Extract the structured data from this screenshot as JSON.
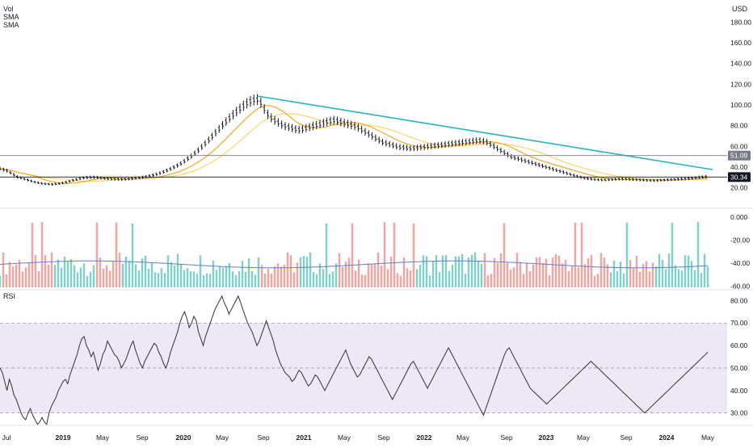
{
  "chart_data": [
    {
      "type": "line",
      "panel": "price",
      "currency_label": "USD",
      "y_ticks": [
        20,
        40,
        60,
        80,
        100,
        120,
        140,
        160,
        180
      ],
      "y_tick_labels": [
        "20.00",
        "40.00",
        "60.00",
        "80.00",
        "100.00",
        "120.00",
        "140.00",
        "160.00",
        "180.00"
      ],
      "ylim": [
        8,
        195
      ],
      "legend": [
        "Vol",
        "SMA",
        "SMA"
      ],
      "series": [
        {
          "role": "price",
          "color": "#131722",
          "values": [
            38.5,
            38,
            37.5,
            37,
            36.5,
            35.5,
            34.5,
            33.5,
            32.5,
            31.5,
            30.5,
            30,
            29.5,
            29,
            28.5,
            28,
            27.5,
            27,
            26.5,
            26,
            25.5,
            25,
            24.8,
            24.5,
            24.2,
            24,
            23.8,
            23.6,
            23.5,
            23.4,
            23.3,
            23.4,
            23.6,
            23.8,
            24,
            24.3,
            24.6,
            25,
            25.4,
            25.8,
            26.2,
            26.7,
            27.2,
            27.6,
            28,
            28.4,
            28.8,
            29.2,
            29.5,
            29.7,
            29.9,
            30,
            30.1,
            30.2,
            30.1,
            30,
            29.9,
            29.7,
            29.5,
            29.3,
            29.1,
            29,
            28.8,
            28.7,
            28.6,
            28.5,
            28.4,
            28.3,
            28.2,
            28.1,
            28.1,
            28.2,
            28.3,
            28.4,
            28.5,
            28.7,
            28.9,
            29.1,
            29.3,
            29.5,
            29.7,
            29.9,
            30.1,
            30.4,
            30.7,
            31,
            31.4,
            31.8,
            32.2,
            32.6,
            33.1,
            33.6,
            34.1,
            34.7,
            35.3,
            36,
            36.7,
            37.4,
            38.2,
            39,
            39.8,
            40.6,
            41.5,
            42.4,
            43.4,
            44.5,
            45.6,
            46.8,
            48,
            49.2,
            50.5,
            51.8,
            53.2,
            54.7,
            56.2,
            57.8,
            59.4,
            61,
            62.7,
            64.4,
            66.1,
            67.8,
            69.6,
            71.4,
            73.2,
            75,
            76.8,
            78.6,
            80.4,
            82.2,
            84,
            85.7,
            87.4,
            89,
            90.5,
            92,
            93.5,
            95,
            96.4,
            97.8,
            99.2,
            100.4,
            101.5,
            102.5,
            103.4,
            104.1,
            104.7,
            105,
            105.2,
            105,
            102,
            99,
            96,
            93,
            91,
            89,
            87.5,
            86,
            85,
            84,
            83,
            82,
            81,
            80,
            79.5,
            79,
            78.5,
            78,
            77.5,
            77,
            76.5,
            76,
            76,
            76,
            76.5,
            77,
            77.5,
            78,
            78.5,
            79,
            79.5,
            80,
            80.5,
            81,
            81.5,
            82,
            82.5,
            83,
            83.5,
            84,
            84.5,
            85,
            85.2,
            85,
            84.5,
            84,
            83.5,
            83,
            82.5,
            82,
            81.5,
            81,
            80.5,
            80,
            79.5,
            79,
            78,
            77,
            76,
            75,
            74,
            73,
            72,
            71,
            70,
            69,
            68,
            67,
            66,
            65,
            64,
            63.5,
            63,
            62.5,
            62,
            61.5,
            61,
            60.5,
            60,
            59.5,
            59.2,
            59,
            58.8,
            58.6,
            58.4,
            58.2,
            58,
            58,
            58.2,
            58.4,
            58.6,
            58.8,
            59,
            59.2,
            59.4,
            59.6,
            59.8,
            60,
            60.2,
            60.4,
            60.6,
            60.8,
            61,
            61.2,
            61.4,
            61.6,
            61.8,
            62,
            62.2,
            62.4,
            62.6,
            62.8,
            63,
            63.2,
            63.4,
            63.6,
            63.8,
            64,
            64.2,
            64.4,
            64.6,
            64.8,
            65,
            65.2,
            65.4,
            65.6,
            65.5,
            65.3,
            65,
            64.5,
            64,
            63,
            62,
            61,
            60,
            59,
            58,
            57,
            56,
            55,
            54,
            53,
            52,
            51,
            50,
            49.5,
            49,
            48.5,
            48,
            47.5,
            47,
            46.5,
            46,
            45.5,
            45,
            44.5,
            44,
            43.5,
            43,
            42.5,
            42,
            41.5,
            41,
            40.5,
            40,
            39.5,
            39,
            38.5,
            38,
            37.5,
            37,
            36.5,
            36,
            35.5,
            35,
            34.5,
            34,
            33.5,
            33,
            32.5,
            32,
            31.5,
            31,
            30.6,
            30.2,
            29.8,
            29.4,
            29,
            28.8,
            28.6,
            28.4,
            28.2,
            28,
            27.9,
            27.8,
            27.7,
            27.6,
            27.5,
            27.6,
            27.7,
            27.8,
            27.9,
            28,
            28.1,
            28.2,
            28.3,
            28.4,
            28.5,
            28.5,
            28.5,
            28.4,
            28.3,
            28.2,
            28.1,
            28,
            27.9,
            27.8,
            27.7,
            27.6,
            27.5,
            27.4,
            27.3,
            27.2,
            27.1,
            27,
            27,
            27,
            27,
            27.1,
            27.2,
            27.3,
            27.4,
            27.5,
            27.6,
            27.7,
            27.8,
            27.9,
            28,
            28.1,
            28.2,
            28.3,
            28.4,
            28.5,
            28.6,
            28.7,
            28.8,
            28.9,
            29,
            29.2,
            29.4,
            29.6,
            29.8,
            30,
            30.2,
            30.4,
            30.6,
            30.8,
            30.34
          ]
        },
        {
          "role": "sma-fast",
          "color": "#f5a623"
        },
        {
          "role": "sma-slow",
          "color": "#ffd56b"
        }
      ],
      "trendline": {
        "color": "#26b5bf",
        "from": [
          105.5
        ],
        "to": [
          37.5
        ]
      },
      "price_levels": [
        {
          "value": 51.09,
          "label": "51.09",
          "color": "#787b86"
        },
        {
          "value": 30.34,
          "label": "30.34",
          "color": "#131722"
        }
      ]
    },
    {
      "type": "bar",
      "panel": "volume",
      "y_ticks": [
        0,
        -20,
        -40,
        -60
      ],
      "y_tick_labels": [
        "0.000",
        "-20.00",
        "-40.00",
        "-60.00"
      ],
      "ylim": [
        -61,
        5
      ],
      "up_color": "#7fd1c7",
      "down_color": "#f4a3a0",
      "ma_color": "#5b7fcf"
    },
    {
      "type": "line",
      "panel": "rsi",
      "label": "RSI",
      "y_ticks": [
        30,
        40,
        50,
        60,
        70,
        80
      ],
      "y_tick_labels": [
        "30.00",
        "40.00",
        "50.00",
        "60.00",
        "70.00",
        "80.00"
      ],
      "ylim": [
        27,
        83
      ],
      "bands": {
        "upper": 70,
        "middle": 50,
        "lower": 30
      },
      "band_color": "#ede7f6",
      "line_color": "#333333",
      "values": [
        50,
        48,
        44,
        40,
        45,
        42,
        38,
        36,
        33,
        30,
        28,
        27,
        30,
        32,
        29,
        27,
        25,
        26,
        28,
        26,
        25,
        30,
        33,
        35,
        37,
        40,
        42,
        44,
        45,
        43,
        47,
        50,
        53,
        56,
        60,
        63,
        64,
        60,
        58,
        55,
        57,
        53,
        49,
        52,
        56,
        58,
        62,
        60,
        58,
        56,
        55,
        53,
        50,
        52,
        54,
        57,
        60,
        62,
        58,
        55,
        52,
        50,
        53,
        55,
        57,
        59,
        61,
        60,
        57,
        55,
        52,
        50,
        53,
        57,
        60,
        63,
        66,
        70,
        73,
        75,
        72,
        68,
        70,
        73,
        71,
        66,
        63,
        60,
        64,
        67,
        70,
        73,
        76,
        78,
        80,
        82,
        79,
        77,
        74,
        76,
        78,
        80,
        82,
        79,
        76,
        73,
        70,
        68,
        66,
        63,
        60,
        62,
        65,
        68,
        71,
        68,
        65,
        62,
        58,
        55,
        52,
        50,
        48,
        47,
        46,
        44,
        45,
        47,
        49,
        48,
        46,
        44,
        42,
        43,
        45,
        47,
        46,
        44,
        42,
        40,
        42,
        44,
        46,
        48,
        50,
        52,
        54,
        56,
        58,
        55,
        52,
        50,
        48,
        46,
        47,
        49,
        51,
        53,
        55,
        54,
        52,
        50,
        48,
        46,
        44,
        42,
        40,
        38,
        36,
        38,
        40,
        42,
        44,
        46,
        48,
        50,
        52,
        53,
        51,
        49,
        47,
        45,
        43,
        41,
        43,
        45,
        47,
        49,
        51,
        53,
        55,
        57,
        59,
        57,
        55,
        53,
        51,
        49,
        47,
        45,
        43,
        41,
        39,
        37,
        35,
        33,
        31,
        29,
        32,
        35,
        38,
        41,
        44,
        47,
        50,
        53,
        56,
        58,
        59,
        57,
        55,
        53,
        51,
        49,
        47,
        45,
        43,
        41,
        40,
        39,
        38,
        37,
        36,
        35,
        34,
        35,
        36,
        37,
        38,
        39,
        40,
        41,
        42,
        43,
        44,
        45,
        46,
        47,
        48,
        49,
        50,
        51,
        52,
        53,
        52,
        51,
        50,
        49,
        48,
        47,
        46,
        45,
        44,
        43,
        42,
        41,
        40,
        39,
        38,
        37,
        36,
        35,
        34,
        33,
        32,
        31,
        30,
        31,
        32,
        33,
        34,
        35,
        36,
        37,
        38,
        39,
        40,
        41,
        42,
        43,
        44,
        45,
        46,
        47,
        48,
        49,
        50,
        51,
        52,
        53,
        54,
        55,
        56,
        57
      ]
    }
  ],
  "x_axis": {
    "labels": [
      "Jul",
      "2019",
      "May",
      "Sep",
      "2020",
      "May",
      "Sep",
      "2021",
      "May",
      "Sep",
      "2022",
      "May",
      "Sep",
      "2023",
      "May",
      "Sep",
      "2024",
      "May"
    ],
    "bold": [
      false,
      true,
      false,
      false,
      true,
      false,
      false,
      true,
      false,
      false,
      true,
      false,
      false,
      true,
      false,
      false,
      true,
      false
    ]
  }
}
